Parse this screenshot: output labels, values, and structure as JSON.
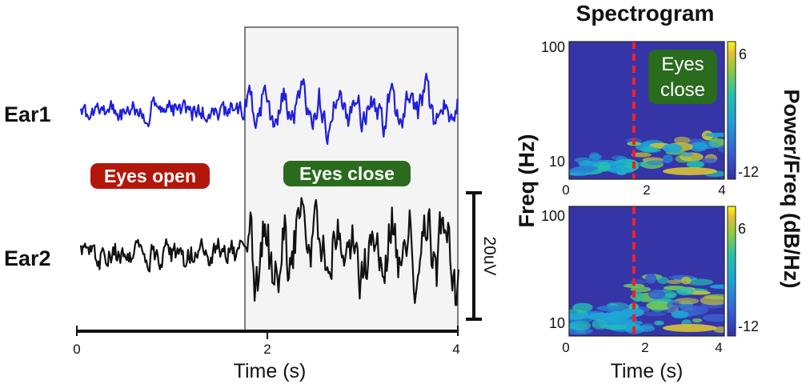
{
  "chart_data": [
    {
      "type": "line",
      "panel": "eeg-traces",
      "channels": [
        {
          "name": "Ear1",
          "color": "#1f1fdc"
        },
        {
          "name": "Ear2",
          "color": "#111111"
        }
      ],
      "xlabel": "Time (s)",
      "x_ticks": [
        "0",
        "2",
        "4"
      ],
      "xlim": [
        0,
        4
      ],
      "condition_change_time": 1.78,
      "conditions": [
        {
          "label": "Eyes open",
          "color": "#b3160b",
          "span": [
            0,
            1.78
          ]
        },
        {
          "label": "Eyes close",
          "color": "#2a6b1d",
          "span": [
            1.78,
            4
          ]
        }
      ],
      "scale_bar_label": "20uV",
      "shaded_region_color": "#f4f4f4"
    },
    {
      "type": "heatmap",
      "panel": "spectrograms",
      "title": "Spectrogram",
      "ylabel": "Freq (Hz)",
      "xlabel": "Time (s)",
      "x_ticks": [
        "0",
        "2",
        "4"
      ],
      "y_ticks": [
        "10",
        "100"
      ],
      "y_scale": "log",
      "ylim": [
        7,
        100
      ],
      "xlim": [
        0,
        4
      ],
      "event_line_time": 1.78,
      "event_line_color": "#ff1f1f",
      "annotation": [
        "Eyes",
        "close"
      ],
      "annotation_color": "#2a6b1d",
      "colorbar_label": "Power/Freq (dB/Hz)",
      "colorbar_ticks": [
        "6",
        "-12"
      ],
      "colorbar_range": [
        -14,
        7
      ],
      "background_color": "#3535a8",
      "subplots": [
        {
          "channel": "Ear1"
        },
        {
          "channel": "Ear2"
        }
      ]
    }
  ]
}
